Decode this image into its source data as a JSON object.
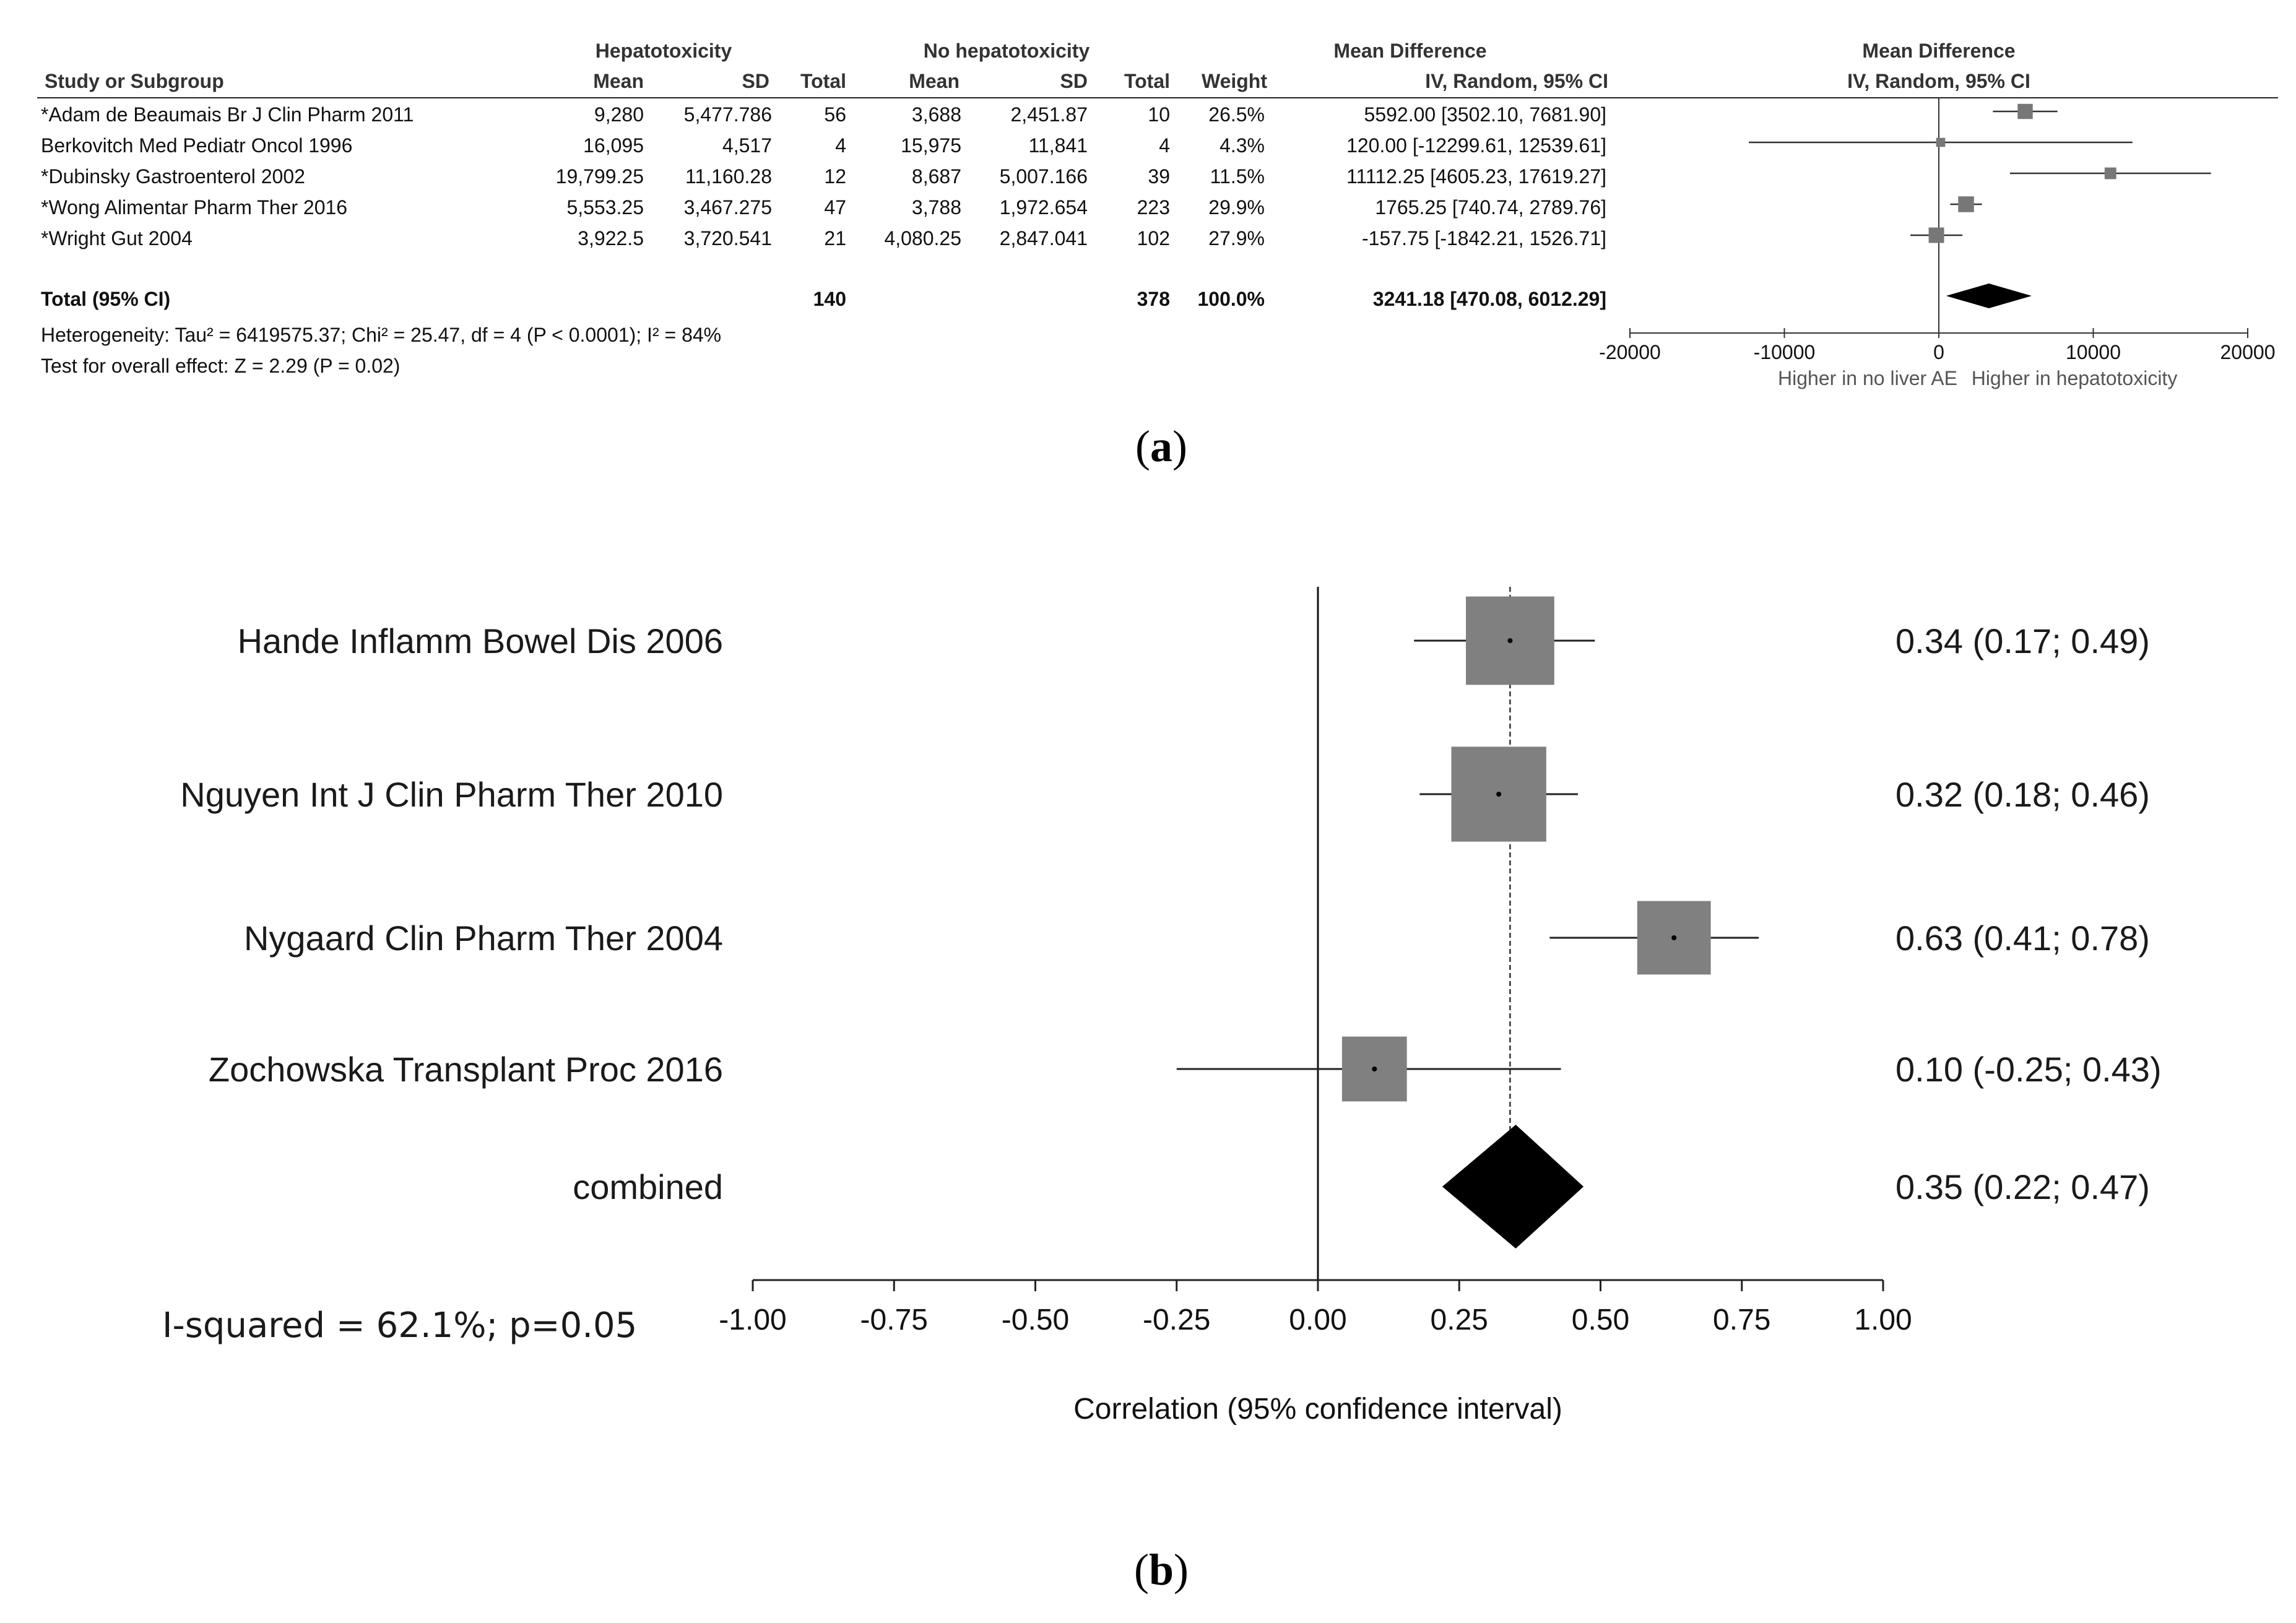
{
  "panel_a": {
    "label_open": "(",
    "label_letter": "a",
    "label_close": ")",
    "headers": {
      "group_hepato": "Hepatotoxicity",
      "group_nohepato": "No hepatotoxicity",
      "group_md": "Mean Difference",
      "group_md_plot": "Mean Difference",
      "study": "Study or Subgroup",
      "mean1": "Mean",
      "sd1": "SD",
      "total1": "Total",
      "mean2": "Mean",
      "sd2": "SD",
      "total2": "Total",
      "weight": "Weight",
      "method": "IV, Random, 95% CI",
      "method_plot": "IV, Random, 95% CI"
    },
    "rows": [
      {
        "study": "*Adam de Beaumais Br J Clin Pharm 2011",
        "mean1": "9,280",
        "sd1": "5,477.786",
        "total1": "56",
        "mean2": "3,688",
        "sd2": "2,451.87",
        "total2": "10",
        "weight": "26.5%",
        "ci_text": "5592.00 [3502.10, 7681.90]"
      },
      {
        "study": "Berkovitch Med Pediatr Oncol 1996",
        "mean1": "16,095",
        "sd1": "4,517",
        "total1": "4",
        "mean2": "15,975",
        "sd2": "11,841",
        "total2": "4",
        "weight": "4.3%",
        "ci_text": "120.00 [-12299.61, 12539.61]"
      },
      {
        "study": "*Dubinsky Gastroenterol 2002",
        "mean1": "19,799.25",
        "sd1": "11,160.28",
        "total1": "12",
        "mean2": "8,687",
        "sd2": "5,007.166",
        "total2": "39",
        "weight": "11.5%",
        "ci_text": "11112.25 [4605.23, 17619.27]"
      },
      {
        "study": "*Wong Alimentar Pharm Ther 2016",
        "mean1": "5,553.25",
        "sd1": "3,467.275",
        "total1": "47",
        "mean2": "3,788",
        "sd2": "1,972.654",
        "total2": "223",
        "weight": "29.9%",
        "ci_text": "1765.25 [740.74, 2789.76]"
      },
      {
        "study": "*Wright Gut 2004",
        "mean1": "3,922.5",
        "sd1": "3,720.541",
        "total1": "21",
        "mean2": "4,080.25",
        "sd2": "2,847.041",
        "total2": "102",
        "weight": "27.9%",
        "ci_text": "-157.75 [-1842.21, 1526.71]"
      }
    ],
    "total": {
      "study": "Total (95% CI)",
      "total1": "140",
      "total2": "378",
      "weight": "100.0%",
      "ci_text": "3241.18 [470.08, 6012.29]"
    },
    "heterogeneity": "Heterogeneity: Tau² = 6419575.37; Chi² = 25.47, df = 4 (P < 0.0001); I² = 84%",
    "overall_effect": "Test for overall effect: Z = 2.29 (P = 0.02)",
    "favours_left": "Higher in no liver AE",
    "favours_right": "Higher in hepatotoxicity"
  },
  "panel_b": {
    "label_open": "(",
    "label_letter": "b",
    "label_close": ")",
    "i_squared": "I-squared = 62.1%; p=0.05"
  },
  "chart_data": [
    {
      "type": "forest",
      "title": "Mean Difference IV, Random, 95% CI",
      "xlabel": "",
      "xlim": [
        -20000,
        20000
      ],
      "ticks": [
        -20000,
        -10000,
        0,
        10000,
        20000
      ],
      "tick_labels": [
        "-20000",
        "-10000",
        "0",
        "10000",
        "20000"
      ],
      "studies": [
        {
          "name": "*Adam de Beaumais Br J Clin Pharm 2011",
          "estimate": 5592.0,
          "lower": 3502.1,
          "upper": 7681.9,
          "weight": 26.5
        },
        {
          "name": "Berkovitch Med Pediatr Oncol 1996",
          "estimate": 120.0,
          "lower": -12299.61,
          "upper": 12539.61,
          "weight": 4.3
        },
        {
          "name": "*Dubinsky Gastroenterol 2002",
          "estimate": 11112.25,
          "lower": 4605.23,
          "upper": 17619.27,
          "weight": 11.5
        },
        {
          "name": "*Wong Alimentar Pharm Ther 2016",
          "estimate": 1765.25,
          "lower": 740.74,
          "upper": 2789.76,
          "weight": 29.9
        },
        {
          "name": "*Wright Gut 2004",
          "estimate": -157.75,
          "lower": -1842.21,
          "upper": 1526.71,
          "weight": 27.9
        }
      ],
      "pooled": {
        "name": "Total (95% CI)",
        "estimate": 3241.18,
        "lower": 470.08,
        "upper": 6012.29
      }
    },
    {
      "type": "forest",
      "title": "",
      "xlabel": "Correlation (95% confidence interval)",
      "xlim": [
        -1.0,
        1.0
      ],
      "ticks": [
        -1.0,
        -0.75,
        -0.5,
        -0.25,
        0.0,
        0.25,
        0.5,
        0.75,
        1.0
      ],
      "tick_labels": [
        "-1.00",
        "-0.75",
        "-0.50",
        "-0.25",
        "0.00",
        "0.25",
        "0.50",
        "0.75",
        "1.00"
      ],
      "reference_line": 0.0,
      "pooled_line": 0.34,
      "studies": [
        {
          "name": "Hande Inflamm Bowel Dis 2006",
          "estimate": 0.34,
          "lower": 0.17,
          "upper": 0.49,
          "label": "0.34 (0.17; 0.49)",
          "weight": 26
        },
        {
          "name": "Nguyen Int J Clin Pharm Ther 2010",
          "estimate": 0.32,
          "lower": 0.18,
          "upper": 0.46,
          "label": "0.32 (0.18; 0.46)",
          "weight": 30
        },
        {
          "name": "Nygaard Clin Pharm Ther 2004",
          "estimate": 0.63,
          "lower": 0.41,
          "upper": 0.78,
          "label": "0.63 (0.41; 0.78)",
          "weight": 18
        },
        {
          "name": "Zochowska Transplant Proc 2016",
          "estimate": 0.1,
          "lower": -0.25,
          "upper": 0.43,
          "label": "0.10  (-0.25; 0.43)",
          "weight": 14
        }
      ],
      "pooled": {
        "name": "combined",
        "estimate": 0.35,
        "lower": 0.22,
        "upper": 0.47,
        "label": "0.35 (0.22; 0.47)"
      }
    }
  ]
}
